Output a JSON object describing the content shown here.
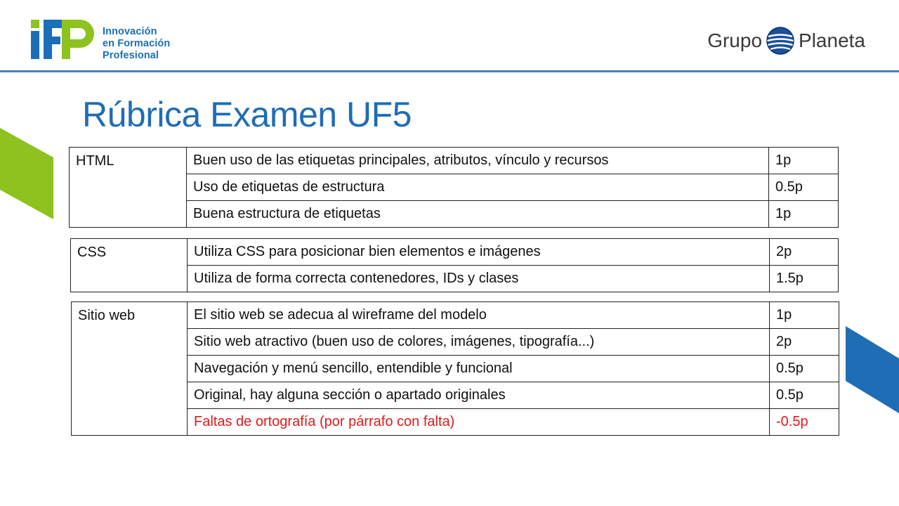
{
  "brand": {
    "ifp_mark": "IFP",
    "ifp_lines": [
      "Innovación",
      "en Formación",
      "Profesional"
    ],
    "planeta_word1": "Grupo",
    "planeta_word2": "Planeta",
    "colors": {
      "blue": "#1f6db4",
      "green": "#8dc21f",
      "red": "#e11a1a"
    }
  },
  "title": "Rúbrica Examen UF5",
  "sections": [
    {
      "category": "HTML",
      "rows": [
        {
          "criterion": "Buen uso de las etiquetas principales, atributos, vínculo y recursos",
          "points": "1p"
        },
        {
          "criterion": "Uso de etiquetas de estructura",
          "points": "0.5p"
        },
        {
          "criterion": "Buena estructura de etiquetas",
          "points": "1p"
        }
      ]
    },
    {
      "category": "CSS",
      "rows": [
        {
          "criterion": "Utiliza CSS para posicionar bien elementos e imágenes",
          "points": "2p"
        },
        {
          "criterion": "Utiliza de forma correcta contenedores, IDs y clases",
          "points": "1.5p"
        }
      ]
    },
    {
      "category": "Sitio web",
      "rows": [
        {
          "criterion": "El sitio web se adecua al wireframe del modelo",
          "points": "1p"
        },
        {
          "criterion": "Sitio web atractivo (buen uso de colores, imágenes, tipografía...)",
          "points": "2p"
        },
        {
          "criterion": "Navegación y menú sencillo, entendible y funcional",
          "points": "0.5p"
        },
        {
          "criterion": "Original, hay alguna sección o apartado originales",
          "points": "0.5p"
        },
        {
          "criterion": "Faltas de ortografía (por párrafo con falta)",
          "points": "-0.5p"
        }
      ]
    }
  ]
}
